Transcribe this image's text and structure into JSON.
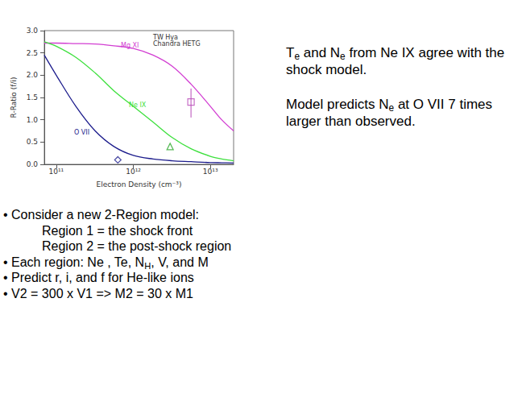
{
  "chart_data": {
    "type": "line",
    "title": "TW Hya\nChandra HETG",
    "x_label": "Electron Density (cm⁻³)",
    "y_label": "R-Ratio (f/i)",
    "log": "x",
    "grid": false,
    "x": [
      70000000000.0,
      100000000000.0,
      180000000000.0,
      320000000000.0,
      560000000000.0,
      1000000000000.0,
      1800000000000.0,
      3200000000000.0,
      5600000000000.0,
      10000000000000.0,
      14000000000000.0,
      20000000000000.0
    ],
    "series": [
      {
        "name": "Mg XI",
        "color": "#d23ed2",
        "values": [
          2.72,
          2.72,
          2.71,
          2.7,
          2.66,
          2.6,
          2.45,
          2.2,
          1.8,
          1.3,
          1.0,
          0.75
        ],
        "observed": {
          "x": 5600000000000.0,
          "value": 1.4,
          "error": [
            1.05,
            1.7
          ],
          "marker": "square",
          "color": "#b84ab8"
        }
      },
      {
        "name": "Ne IX",
        "color": "#3ee03e",
        "values": [
          2.75,
          2.65,
          2.4,
          2.05,
          1.65,
          1.3,
          0.95,
          0.6,
          0.35,
          0.18,
          0.12,
          0.08
        ],
        "observed": {
          "x": 3000000000000.0,
          "value": 0.4,
          "marker": "triangle",
          "color": "#2aa82a"
        }
      },
      {
        "name": "O VII",
        "color": "#1c1c8c",
        "values": [
          2.45,
          2.0,
          1.3,
          0.75,
          0.4,
          0.2,
          0.12,
          0.08,
          0.06,
          0.04,
          0.035,
          0.03
        ],
        "observed": {
          "x": 630000000000.0,
          "value": 0.1,
          "marker": "diamond",
          "color": "#1c1c8c"
        }
      }
    ],
    "xlim": [
      70000000000.0,
      20000000000000.0
    ],
    "xticks": [
      {
        "value": 100000000000.0,
        "label": "10¹¹"
      },
      {
        "value": 1000000000000.0,
        "label": "10¹²"
      },
      {
        "value": 10000000000000.0,
        "label": "10¹³"
      }
    ],
    "ylim": [
      0,
      3
    ],
    "yticks": [
      {
        "value": 0,
        "label": "0.0"
      },
      0.5,
      {
        "value": 1,
        "label": "1.0"
      },
      1.5,
      {
        "value": 2,
        "label": "2.0"
      },
      2.5,
      {
        "value": 3,
        "label": "3.0"
      }
    ]
  },
  "notes": {
    "right": [
      [
        "T",
        {
          "sub": "e"
        },
        " and N",
        {
          "sub": "e"
        },
        " from Ne IX  agree with the shock model."
      ],
      [
        "Model predicts N",
        {
          "sub": "e"
        },
        "  at O VII  7 times larger than observed."
      ]
    ],
    "bullets": [
      {
        "text": [
          "• Consider a new 2-Region model:"
        ],
        "items": [
          [
            "Region 1 = the shock front"
          ],
          [
            "Region 2 = the post-shock region"
          ]
        ]
      },
      {
        "text": [
          "• Each region: Ne , Te, N",
          {
            "sub": "H"
          },
          ", V, and M"
        ],
        "items": []
      },
      {
        "text": [
          "• Predict r, i, and f for  He-like ions"
        ],
        "items": []
      },
      {
        "text": [
          "• V2 = 300 x V1   =>  M2 = 30 x M1"
        ],
        "items": []
      }
    ]
  }
}
